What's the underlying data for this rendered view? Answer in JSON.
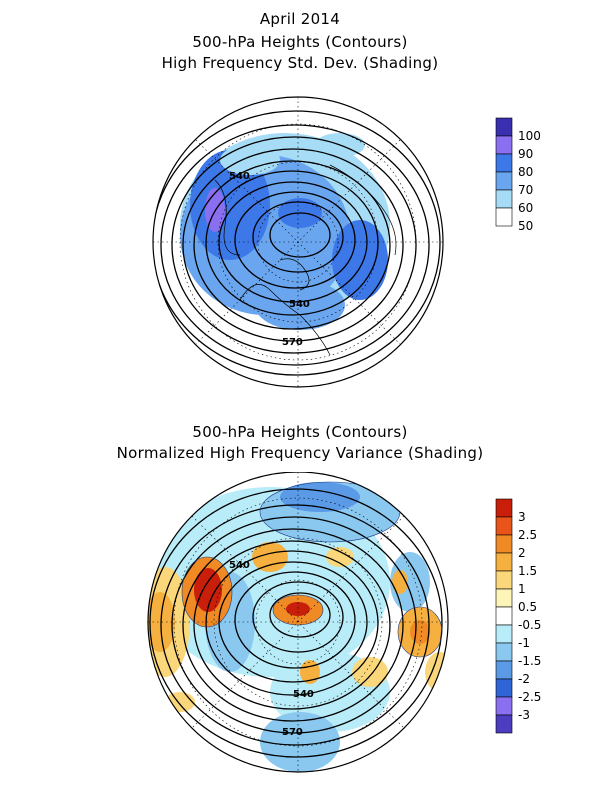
{
  "top_panel": {
    "title_line1": "April 2014",
    "title_line2": "500-hPa Heights (Contours)",
    "title_line3": "High Frequency Std. Dev. (Shading)",
    "contour_labels": [
      "540",
      "540",
      "570"
    ],
    "colorbar": {
      "labels": [
        "100",
        "90",
        "80",
        "70",
        "60",
        "50"
      ],
      "colors": [
        "#3a2fb0",
        "#8a6ff0",
        "#3d78e8",
        "#6aa6f0",
        "#a6dcf5",
        "#ffffff"
      ]
    }
  },
  "bottom_panel": {
    "title_line1": "500-hPa Heights (Contours)",
    "title_line2": "Normalized High Frequency Variance (Shading)",
    "contour_labels": [
      "540",
      "540",
      "570"
    ],
    "colorbar": {
      "labels": [
        "3",
        "2.5",
        "2",
        "1.5",
        "1",
        "0.5",
        "-0.5",
        "-1",
        "-1.5",
        "-2",
        "-2.5",
        "-3"
      ],
      "colors": [
        "#c81e0a",
        "#e8541a",
        "#f08a25",
        "#f6b040",
        "#fad77a",
        "#fdf4b8",
        "#ffffff",
        "#b8ecf8",
        "#8ac8f0",
        "#5a9ae6",
        "#3065d8",
        "#8a6ff0",
        "#4b3cc0"
      ]
    }
  }
}
